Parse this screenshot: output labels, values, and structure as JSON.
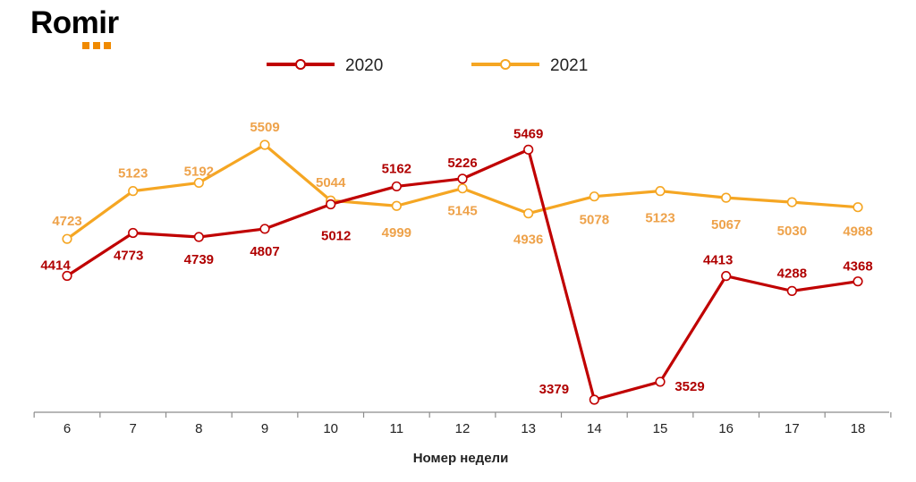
{
  "brand": {
    "name": "Romir",
    "dot_color": "#f08a00"
  },
  "chart_data": {
    "type": "line",
    "x": [
      6,
      7,
      8,
      9,
      10,
      11,
      12,
      13,
      14,
      15,
      16,
      17,
      18
    ],
    "xlabel": "Номер недели",
    "ylabel": "",
    "ylim": [
      3300,
      5800
    ],
    "grid": false,
    "legend": "top-center",
    "series": [
      {
        "name": "2020",
        "color": "#c00000",
        "values": [
          4414,
          4773,
          4739,
          4807,
          5012,
          5162,
          5226,
          5469,
          3379,
          3529,
          4413,
          4288,
          4368
        ]
      },
      {
        "name": "2021",
        "color": "#f5a623",
        "values": [
          4723,
          5123,
          5192,
          5509,
          5044,
          4999,
          5145,
          4936,
          5078,
          5123,
          5067,
          5030,
          4988
        ]
      }
    ]
  }
}
